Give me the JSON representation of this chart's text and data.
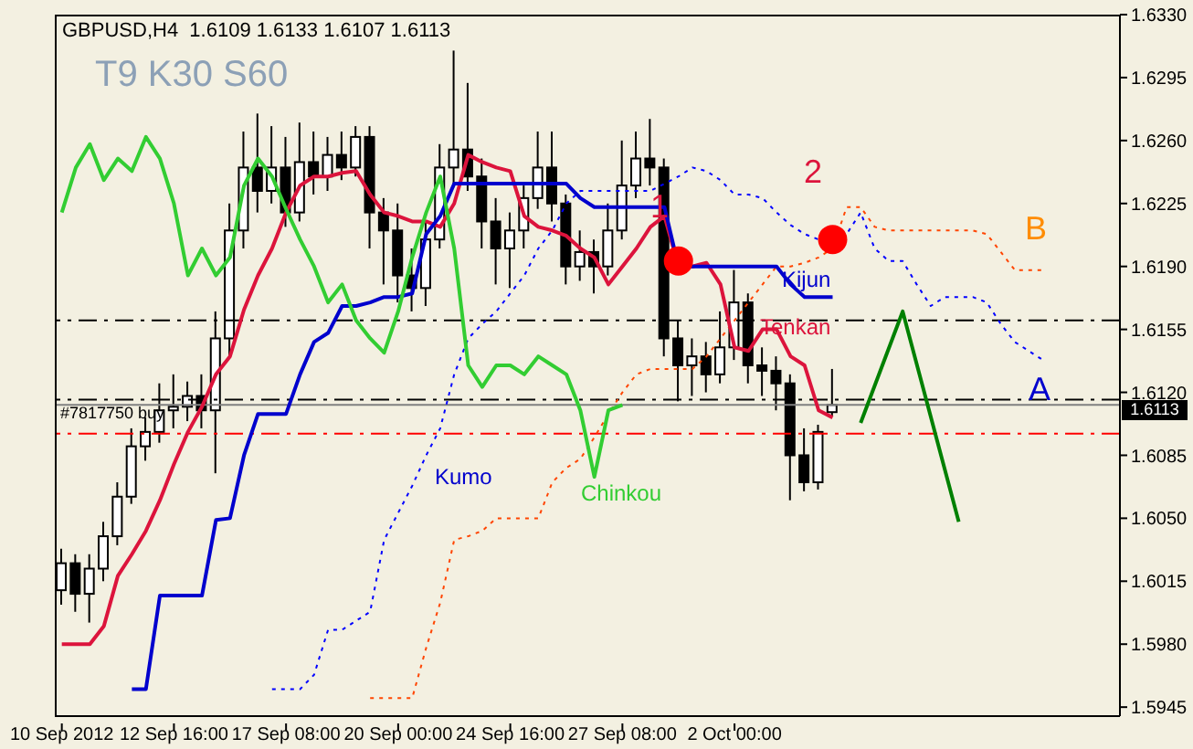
{
  "chart_data": {
    "type": "candlestick",
    "title": "GBPUSD,H4  1.6109 1.6133 1.6107 1.6113",
    "subtitle": "T9 K30 S60",
    "categories": [
      "10 Sep 2012",
      null,
      null,
      null,
      null,
      null,
      null,
      null,
      "12 Sep 16:00",
      null,
      null,
      null,
      null,
      null,
      null,
      null,
      "17 Sep 08:00",
      null,
      null,
      null,
      null,
      null,
      null,
      null,
      "20 Sep 00:00",
      null,
      null,
      null,
      null,
      null,
      null,
      null,
      "24 Sep 16:00",
      null,
      null,
      null,
      null,
      null,
      null,
      null,
      "27 Sep 08:00",
      null,
      null,
      null,
      null,
      null,
      null,
      null,
      "2 Oct 00:00",
      null,
      null,
      null,
      null,
      null,
      null,
      null,
      null,
      null,
      null,
      null,
      null,
      null,
      null,
      null,
      null,
      null,
      null,
      null,
      null,
      null,
      null,
      null,
      null,
      null,
      null,
      null
    ],
    "ohlc": [
      [
        1.601,
        1.6033,
        1.6002,
        1.6025
      ],
      [
        1.6025,
        1.603,
        1.5998,
        1.6008
      ],
      [
        1.6008,
        1.603,
        1.5992,
        1.6022
      ],
      [
        1.6022,
        1.6048,
        1.6015,
        1.604
      ],
      [
        1.604,
        1.607,
        1.6035,
        1.6062
      ],
      [
        1.6062,
        1.61,
        1.6058,
        1.609
      ],
      [
        1.609,
        1.6106,
        1.6082,
        1.6098
      ],
      [
        1.6098,
        1.6125,
        1.6092,
        1.611
      ],
      [
        1.611,
        1.613,
        1.61,
        1.6112
      ],
      [
        1.6112,
        1.6126,
        1.6104,
        1.6118
      ],
      [
        1.6118,
        1.613,
        1.61,
        1.611
      ],
      [
        1.611,
        1.6165,
        1.6075,
        1.615
      ],
      [
        1.615,
        1.6225,
        1.614,
        1.621
      ],
      [
        1.621,
        1.6265,
        1.62,
        1.6245
      ],
      [
        1.6245,
        1.6275,
        1.622,
        1.6232
      ],
      [
        1.6232,
        1.6268,
        1.6225,
        1.6245
      ],
      [
        1.6245,
        1.6262,
        1.6212,
        1.622
      ],
      [
        1.622,
        1.627,
        1.6215,
        1.6248
      ],
      [
        1.6248,
        1.6265,
        1.623,
        1.624
      ],
      [
        1.624,
        1.6262,
        1.6232,
        1.6252
      ],
      [
        1.6252,
        1.6265,
        1.6238,
        1.6245
      ],
      [
        1.6245,
        1.6268,
        1.624,
        1.6262
      ],
      [
        1.6262,
        1.6268,
        1.62,
        1.622
      ],
      [
        1.622,
        1.6228,
        1.618,
        1.621
      ],
      [
        1.621,
        1.6225,
        1.617,
        1.6185
      ],
      [
        1.6185,
        1.62,
        1.6165,
        1.6178
      ],
      [
        1.6178,
        1.6215,
        1.6168,
        1.6205
      ],
      [
        1.6205,
        1.6258,
        1.62,
        1.6245
      ],
      [
        1.6245,
        1.631,
        1.6235,
        1.6255
      ],
      [
        1.6255,
        1.6292,
        1.6232,
        1.624
      ],
      [
        1.624,
        1.625,
        1.62,
        1.6215
      ],
      [
        1.6215,
        1.6228,
        1.618,
        1.62
      ],
      [
        1.62,
        1.622,
        1.6178,
        1.621
      ],
      [
        1.621,
        1.6235,
        1.62,
        1.6228
      ],
      [
        1.6228,
        1.6265,
        1.6222,
        1.6245
      ],
      [
        1.6245,
        1.6265,
        1.6215,
        1.6225
      ],
      [
        1.6225,
        1.623,
        1.618,
        1.619
      ],
      [
        1.619,
        1.621,
        1.6182,
        1.6198
      ],
      [
        1.6198,
        1.6205,
        1.6175,
        1.619
      ],
      [
        1.619,
        1.6225,
        1.6185,
        1.621
      ],
      [
        1.621,
        1.626,
        1.6205,
        1.6235
      ],
      [
        1.6235,
        1.6265,
        1.6228,
        1.625
      ],
      [
        1.625,
        1.6272,
        1.6235,
        1.6245
      ],
      [
        1.6245,
        1.625,
        1.614,
        1.615
      ],
      [
        1.615,
        1.616,
        1.6115,
        1.6135
      ],
      [
        1.6135,
        1.615,
        1.6118,
        1.614
      ],
      [
        1.614,
        1.6148,
        1.612,
        1.613
      ],
      [
        1.613,
        1.6165,
        1.6125,
        1.6145
      ],
      [
        1.6145,
        1.6188,
        1.6138,
        1.617
      ],
      [
        1.617,
        1.6175,
        1.6125,
        1.6135
      ],
      [
        1.6135,
        1.6145,
        1.6118,
        1.6132
      ],
      [
        1.6132,
        1.614,
        1.611,
        1.6125
      ],
      [
        1.6125,
        1.613,
        1.606,
        1.6085
      ],
      [
        1.6085,
        1.61,
        1.6065,
        1.607
      ],
      [
        1.607,
        1.6102,
        1.6066,
        1.6098
      ],
      [
        1.6109,
        1.6133,
        1.6107,
        1.6113
      ],
      null,
      null,
      null,
      null,
      null,
      null,
      null,
      null,
      null,
      null,
      null,
      null,
      null,
      null,
      null,
      null,
      null,
      null,
      null,
      null
    ],
    "series": [
      {
        "name": "Tenkan",
        "type": "line",
        "color": "#dc143c",
        "line_style": "solid",
        "values": [
          1.598,
          1.598,
          1.598,
          1.599,
          1.6018,
          1.603,
          1.6043,
          1.606,
          1.608,
          1.6098,
          1.6112,
          1.613,
          1.614,
          1.6166,
          1.6185,
          1.62,
          1.622,
          1.6235,
          1.624,
          1.624,
          1.6242,
          1.6243,
          1.623,
          1.622,
          1.6218,
          1.6215,
          1.6215,
          1.6212,
          1.6225,
          1.6252,
          1.6248,
          1.6245,
          1.6243,
          1.6218,
          1.6212,
          1.621,
          1.6207,
          1.62,
          1.6195,
          1.618,
          1.619,
          1.62,
          1.6212,
          1.6218,
          1.619,
          1.619,
          1.6192,
          1.618,
          1.6145,
          1.6143,
          1.6155,
          1.6155,
          1.614,
          1.6135,
          1.611,
          1.6106,
          null,
          null,
          null,
          null,
          null,
          null,
          null,
          null,
          null,
          null,
          null,
          null,
          null,
          null,
          null,
          null,
          null,
          null,
          null,
          null
        ]
      },
      {
        "name": "Kijun",
        "type": "line",
        "color": "#0000cd",
        "line_style": "solid",
        "values": [
          null,
          null,
          null,
          null,
          null,
          1.5955,
          1.5955,
          1.6007,
          1.6007,
          1.6007,
          1.6007,
          1.6049,
          1.605,
          1.6085,
          1.6108,
          1.6108,
          1.6108,
          1.613,
          1.6148,
          1.6153,
          1.6168,
          1.6168,
          1.617,
          1.6173,
          1.6173,
          1.6175,
          1.6208,
          1.6218,
          1.6236,
          1.6236,
          1.6236,
          1.6236,
          1.6236,
          1.6236,
          1.6236,
          1.6236,
          1.6236,
          1.6228,
          1.6223,
          1.6223,
          1.6223,
          1.6223,
          1.6223,
          1.6223,
          1.619,
          1.619,
          1.619,
          1.619,
          1.619,
          1.619,
          1.619,
          1.619,
          1.618,
          1.6173,
          1.6173,
          1.6173,
          null,
          null,
          null,
          null,
          null,
          null,
          null,
          null,
          null,
          null,
          null,
          null,
          null,
          null,
          null,
          null,
          null,
          null,
          null,
          null
        ]
      },
      {
        "name": "Chinkou",
        "type": "line",
        "color": "#32cd32",
        "line_style": "solid",
        "values": [
          1.622,
          1.6245,
          1.6258,
          1.6238,
          1.625,
          1.6243,
          1.6262,
          1.625,
          1.6225,
          1.6185,
          1.62,
          1.6185,
          1.6195,
          1.6235,
          1.625,
          1.624,
          1.6222,
          1.6205,
          1.619,
          1.617,
          1.618,
          1.616,
          1.615,
          1.6142,
          1.6165,
          1.6195,
          1.622,
          1.624,
          1.62,
          1.6135,
          1.6123,
          1.6135,
          1.6135,
          1.613,
          1.614,
          1.6135,
          1.613,
          1.611,
          1.6073,
          1.611,
          1.6113,
          null,
          null,
          null,
          null,
          null,
          null,
          null,
          null,
          null,
          null,
          null,
          null,
          null,
          null,
          null,
          null,
          null,
          null,
          null,
          null,
          null,
          null,
          null,
          null,
          null,
          null,
          null,
          null,
          null,
          null,
          null,
          null,
          null,
          null,
          null
        ]
      },
      {
        "type": "line",
        "color": "#ff4500",
        "line_style": "dotted",
        "values": [
          null,
          null,
          null,
          null,
          null,
          null,
          null,
          null,
          null,
          null,
          null,
          null,
          null,
          null,
          null,
          null,
          null,
          null,
          null,
          null,
          null,
          null,
          1.595,
          1.595,
          1.595,
          1.595,
          1.5978,
          1.6003,
          1.6038,
          1.604,
          1.6043,
          1.605,
          1.605,
          1.605,
          1.605,
          1.607,
          1.6078,
          1.6083,
          1.6095,
          1.6108,
          1.612,
          1.613,
          1.6133,
          1.6133,
          1.6133,
          1.6133,
          1.614,
          1.615,
          1.616,
          1.617,
          1.618,
          1.619,
          1.619,
          1.6192,
          1.6195,
          1.62,
          1.6223,
          1.6223,
          1.6212,
          1.621,
          1.621,
          1.621,
          1.621,
          1.621,
          1.621,
          1.621,
          1.6208,
          1.6198,
          1.6188,
          1.6188,
          1.6188,
          null,
          null,
          null,
          null,
          null
        ]
      },
      {
        "type": "line",
        "color": "#0000ff",
        "line_style": "dotted",
        "values": [
          null,
          null,
          null,
          null,
          null,
          null,
          null,
          null,
          null,
          null,
          null,
          null,
          null,
          null,
          null,
          1.5955,
          1.5955,
          1.5955,
          1.5963,
          1.5988,
          1.5988,
          1.5993,
          1.5998,
          1.6038,
          1.6053,
          1.6068,
          1.6085,
          1.61,
          1.613,
          1.615,
          1.6158,
          1.6165,
          1.6175,
          1.6185,
          1.62,
          1.621,
          1.6225,
          1.6232,
          1.6232,
          1.6232,
          1.6232,
          1.6232,
          1.6232,
          1.6236,
          1.624,
          1.6245,
          1.6243,
          1.6238,
          1.623,
          1.623,
          1.6228,
          1.622,
          1.6213,
          1.6208,
          1.6205,
          1.6208,
          1.6208,
          1.622,
          1.62,
          1.6193,
          1.6193,
          1.618,
          1.6168,
          1.6173,
          1.6173,
          1.6173,
          1.617,
          1.6158,
          1.6148,
          1.6143,
          1.6138,
          null,
          null,
          null,
          null,
          null
        ]
      },
      {
        "type": "scatter",
        "color": "#ff0000",
        "marker": "circle",
        "values": [
          null,
          null,
          null,
          null,
          null,
          null,
          null,
          null,
          null,
          null,
          null,
          null,
          null,
          null,
          null,
          null,
          null,
          null,
          null,
          null,
          null,
          null,
          null,
          null,
          null,
          null,
          null,
          null,
          null,
          null,
          null,
          null,
          null,
          null,
          null,
          null,
          null,
          null,
          null,
          null,
          null,
          null,
          null,
          null,
          1.6193,
          null,
          null,
          null,
          null,
          null,
          null,
          null,
          null,
          null,
          null,
          1.6205,
          null,
          null,
          null,
          null,
          null,
          null,
          null,
          null,
          null,
          null,
          null,
          null,
          null,
          null,
          null,
          null,
          null,
          null,
          null,
          null
        ]
      },
      {
        "type": "line",
        "color": "#008000",
        "line_style": "solid",
        "values": [
          null,
          null,
          null,
          null,
          null,
          null,
          null,
          null,
          null,
          null,
          null,
          null,
          null,
          null,
          null,
          null,
          null,
          null,
          null,
          null,
          null,
          null,
          null,
          null,
          null,
          null,
          null,
          null,
          null,
          null,
          null,
          null,
          null,
          null,
          null,
          null,
          null,
          null,
          null,
          null,
          null,
          null,
          null,
          null,
          null,
          null,
          null,
          null,
          null,
          null,
          null,
          null,
          null,
          null,
          null,
          null,
          null,
          1.6103,
          null,
          null,
          1.6165,
          null,
          null,
          null,
          1.6048,
          null,
          null,
          null,
          null,
          null,
          null,
          null,
          null,
          null,
          null,
          null
        ]
      }
    ],
    "ylim": [
      1.594,
      1.633
    ],
    "yticks": [
      1.5945,
      {
        "value": 1.598,
        "label": "1.5980"
      },
      1.6015,
      {
        "value": 1.605,
        "label": "1.6050"
      },
      1.6085,
      {
        "value": 1.612,
        "label": "1.6120"
      },
      1.6155,
      {
        "value": 1.619,
        "label": "1.6190"
      },
      1.6225,
      {
        "value": 1.626,
        "label": "1.6260"
      },
      1.6295,
      {
        "value": 1.633,
        "label": "1.6330"
      }
    ],
    "ref_lines": [
      {
        "axis": "y",
        "value": 1.616,
        "color": "#000000",
        "line_style": "dashed"
      },
      {
        "axis": "y",
        "value": 1.6116,
        "label": "#7817750 buy",
        "color": "#000000",
        "line_style": "dashed"
      },
      {
        "axis": "y",
        "value": 1.6113,
        "label": "1.6113",
        "color": "#808080",
        "line_style": "solid"
      },
      {
        "axis": "y",
        "value": 1.6097,
        "color": "#ff0000",
        "line_style": "dashed"
      }
    ],
    "annotations": [
      "1",
      "2",
      "A",
      "B",
      "Kumo"
    ]
  }
}
